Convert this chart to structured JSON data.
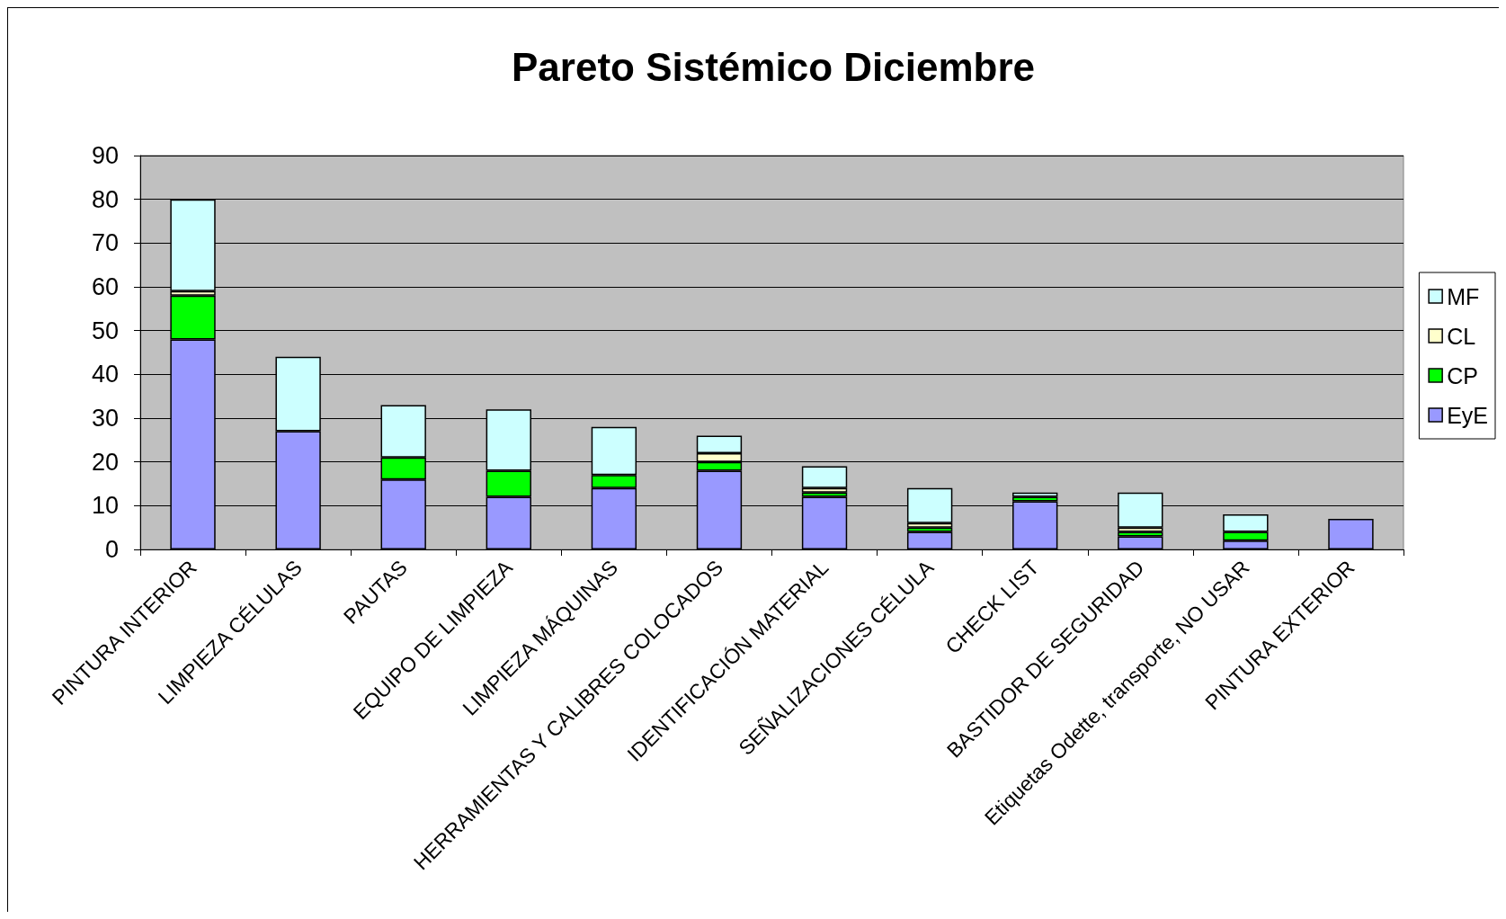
{
  "chart_data": {
    "type": "bar",
    "title": "Pareto Sistémico Diciembre",
    "categories": [
      "PINTURA INTERIOR",
      "LIMPIEZA CÉLULAS",
      "PAUTAS",
      "EQUIPO DE LIMPIEZA",
      "LIMPIEZA MÁQUINAS",
      "HERRAMIENTAS Y CALIBRES COLOCADOS",
      "IDENTIFICACIÓN MATERIAL",
      "SEÑALIZACIONES CÉLULA",
      "CHECK LIST",
      "BASTIDOR DE SEGURIDAD",
      "Etiquetas Odette, transporte, NO USAR",
      "PINTURA EXTERIOR"
    ],
    "stacked": true,
    "series": [
      {
        "name": "EyE",
        "color": "#9999ff",
        "values": [
          48,
          27,
          16,
          12,
          14,
          18,
          12,
          4,
          11,
          3,
          2,
          7
        ]
      },
      {
        "name": "CP",
        "color": "#00ff00",
        "values": [
          10,
          0,
          5,
          6,
          3,
          2,
          1,
          1,
          1,
          1,
          2,
          0
        ]
      },
      {
        "name": "CL",
        "color": "#ffffcc",
        "values": [
          1,
          0,
          0,
          0,
          0,
          2,
          1,
          1,
          0,
          1,
          0,
          0
        ]
      },
      {
        "name": "MF",
        "color": "#ccffff",
        "values": [
          21,
          17,
          12,
          14,
          11,
          4,
          5,
          8,
          1,
          8,
          4,
          0
        ]
      }
    ],
    "ylim": [
      0,
      90
    ],
    "yticks": [
      0,
      10,
      20,
      30,
      40,
      50,
      60,
      70,
      80,
      90
    ],
    "grid": "y",
    "legend": "right"
  }
}
